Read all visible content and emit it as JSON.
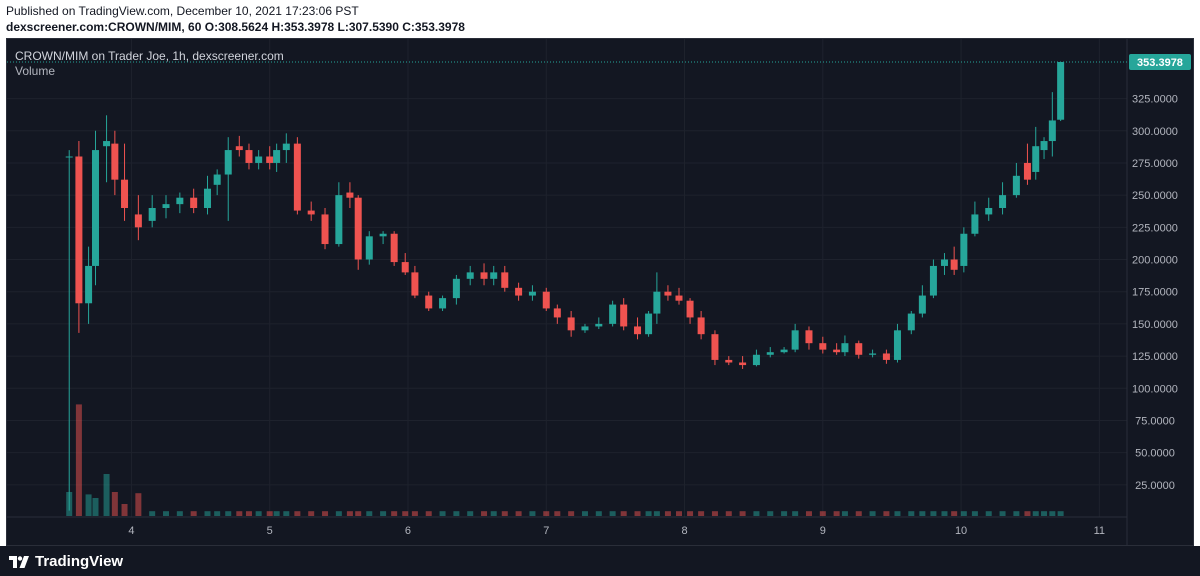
{
  "header": {
    "published": "Published on TradingView.com, December 10, 2021 17:23:06 PST",
    "symbol": "dexscreener.com:CROWN/MIM, 60",
    "ohlc": "O:308.5624 H:353.3978 L:307.5390 C:353.3978"
  },
  "chart_header": {
    "title": "CROWN/MIM on Trader Joe, 1h, dexscreener.com",
    "volume_label": "Volume"
  },
  "footer": {
    "brand": "TradingView"
  },
  "colors": {
    "up": "#26a69a",
    "down": "#ef5350",
    "background": "#131722",
    "grid": "#1e222d",
    "axis_text": "#b2b5be",
    "price_label": "#26a69a"
  },
  "chart_data": {
    "type": "candlestick",
    "title": "CROWN/MIM on Trader Joe, 1h, dexscreener.com",
    "x_tick_labels": [
      "4",
      "5",
      "6",
      "7",
      "8",
      "9",
      "10",
      "11"
    ],
    "x_ticks": [
      4,
      5,
      6,
      7,
      8,
      9,
      10,
      11
    ],
    "y_tick_labels": [
      "25.0000",
      "50.0000",
      "75.0000",
      "100.0000",
      "125.0000",
      "150.0000",
      "175.0000",
      "200.0000",
      "225.0000",
      "250.0000",
      "275.0000",
      "300.0000",
      "325.0000"
    ],
    "y_ticks": [
      25,
      50,
      75,
      100,
      125,
      150,
      175,
      200,
      225,
      250,
      275,
      300,
      325
    ],
    "ylim": [
      0,
      353.4
    ],
    "xlim": [
      3.1,
      11.2
    ],
    "grid": true,
    "last_price": 353.3978,
    "last_price_label": "353.3978",
    "ohlc_last": {
      "open": 308.5624,
      "high": 353.3978,
      "low": 307.539,
      "close": 353.3978
    },
    "series": [
      {
        "name": "Volume",
        "values": [
          20,
          93,
          18,
          15,
          35,
          20,
          10,
          19
        ]
      },
      {
        "name": "Price",
        "values": [
          [
            3.55,
            280,
            285,
            5,
            280
          ],
          [
            3.62,
            280,
            292,
            143,
            166
          ],
          [
            3.69,
            166,
            210,
            150,
            195
          ],
          [
            3.74,
            195,
            300,
            180,
            285
          ],
          [
            3.82,
            288,
            312,
            260,
            292
          ],
          [
            3.88,
            290,
            300,
            250,
            262
          ],
          [
            3.95,
            262,
            290,
            230,
            240
          ],
          [
            4.05,
            235,
            250,
            215,
            225
          ],
          [
            4.15,
            230,
            250,
            225,
            240
          ],
          [
            4.25,
            240,
            250,
            232,
            243
          ],
          [
            4.35,
            243,
            252,
            236,
            248
          ],
          [
            4.45,
            248,
            255,
            236,
            240
          ],
          [
            4.55,
            240,
            265,
            235,
            255
          ],
          [
            4.62,
            258,
            270,
            250,
            266
          ],
          [
            4.7,
            266,
            295,
            230,
            285
          ],
          [
            4.78,
            288,
            296,
            280,
            285
          ],
          [
            4.85,
            285,
            290,
            270,
            275
          ],
          [
            4.92,
            275,
            285,
            270,
            280
          ],
          [
            5.0,
            280,
            288,
            270,
            275
          ],
          [
            5.05,
            275,
            290,
            268,
            285
          ],
          [
            5.12,
            285,
            298,
            275,
            290
          ],
          [
            5.2,
            290,
            295,
            235,
            238
          ],
          [
            5.3,
            238,
            245,
            230,
            235
          ],
          [
            5.4,
            235,
            240,
            208,
            212
          ],
          [
            5.5,
            212,
            260,
            210,
            250
          ],
          [
            5.58,
            252,
            260,
            240,
            248
          ],
          [
            5.64,
            248,
            250,
            192,
            200
          ],
          [
            5.72,
            200,
            222,
            196,
            218
          ],
          [
            5.82,
            218,
            222,
            212,
            220
          ],
          [
            5.9,
            220,
            222,
            195,
            198
          ],
          [
            5.98,
            198,
            205,
            188,
            190
          ],
          [
            6.05,
            190,
            195,
            170,
            172
          ],
          [
            6.15,
            172,
            175,
            160,
            162
          ],
          [
            6.25,
            162,
            172,
            160,
            170
          ],
          [
            6.35,
            170,
            188,
            165,
            185
          ],
          [
            6.45,
            185,
            195,
            180,
            190
          ],
          [
            6.55,
            190,
            197,
            180,
            185
          ],
          [
            6.62,
            185,
            195,
            180,
            190
          ],
          [
            6.7,
            190,
            195,
            175,
            178
          ],
          [
            6.8,
            178,
            182,
            168,
            172
          ],
          [
            6.9,
            172,
            180,
            168,
            175
          ],
          [
            7.0,
            175,
            178,
            160,
            162
          ],
          [
            7.08,
            162,
            165,
            150,
            155
          ],
          [
            7.18,
            155,
            160,
            140,
            145
          ],
          [
            7.28,
            145,
            150,
            143,
            148
          ],
          [
            7.38,
            148,
            155,
            146,
            150
          ],
          [
            7.48,
            150,
            168,
            148,
            165
          ],
          [
            7.56,
            165,
            170,
            145,
            148
          ],
          [
            7.66,
            148,
            155,
            138,
            142
          ],
          [
            7.74,
            142,
            160,
            140,
            158
          ],
          [
            7.8,
            158,
            190,
            150,
            175
          ],
          [
            7.88,
            175,
            180,
            168,
            172
          ],
          [
            7.96,
            172,
            178,
            165,
            168
          ],
          [
            8.04,
            168,
            170,
            150,
            155
          ],
          [
            8.12,
            155,
            160,
            138,
            142
          ],
          [
            8.22,
            142,
            145,
            118,
            122
          ],
          [
            8.32,
            122,
            125,
            118,
            120
          ],
          [
            8.42,
            120,
            125,
            115,
            118
          ],
          [
            8.52,
            118,
            130,
            117,
            126
          ],
          [
            8.62,
            126,
            132,
            124,
            128
          ],
          [
            8.72,
            128,
            132,
            127,
            130
          ],
          [
            8.8,
            130,
            150,
            128,
            145
          ],
          [
            8.9,
            145,
            148,
            130,
            135
          ],
          [
            9.0,
            135,
            140,
            127,
            130
          ],
          [
            9.1,
            130,
            135,
            126,
            128
          ],
          [
            9.16,
            128,
            141,
            125,
            135
          ],
          [
            9.26,
            135,
            137,
            123,
            126
          ],
          [
            9.36,
            126,
            130,
            124,
            127
          ],
          [
            9.46,
            127,
            130,
            119,
            122
          ],
          [
            9.54,
            122,
            150,
            120,
            145
          ],
          [
            9.64,
            145,
            160,
            142,
            158
          ],
          [
            9.72,
            158,
            180,
            155,
            172
          ],
          [
            9.8,
            172,
            200,
            170,
            195
          ],
          [
            9.88,
            195,
            205,
            188,
            200
          ],
          [
            9.95,
            200,
            210,
            188,
            192
          ],
          [
            10.02,
            195,
            225,
            190,
            220
          ],
          [
            10.1,
            220,
            245,
            218,
            235
          ],
          [
            10.2,
            235,
            248,
            230,
            240
          ],
          [
            10.3,
            240,
            260,
            235,
            250
          ],
          [
            10.4,
            250,
            275,
            248,
            265
          ],
          [
            10.48,
            275,
            290,
            258,
            262
          ],
          [
            10.54,
            268,
            303,
            262,
            288
          ],
          [
            10.6,
            285,
            295,
            278,
            292
          ],
          [
            10.66,
            292,
            330,
            280,
            308
          ],
          [
            10.72,
            308.5624,
            353.3978,
            307.539,
            353.3978
          ]
        ]
      }
    ]
  }
}
